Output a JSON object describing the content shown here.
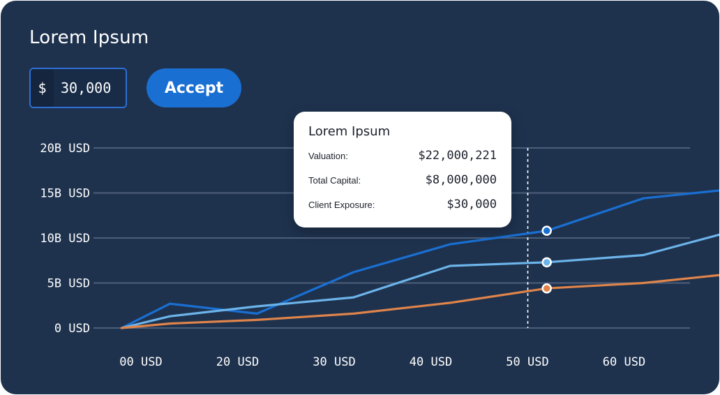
{
  "header": {
    "title": "Lorem Ipsum"
  },
  "amount_input": {
    "currency_symbol": "$",
    "value": "30,000"
  },
  "accept_button": {
    "label": "Accept"
  },
  "tooltip": {
    "title": "Lorem Ipsum",
    "rows": [
      {
        "label": "Valuation:",
        "value": "$22,000,221"
      },
      {
        "label": "Total Capital:",
        "value": "$8,000,000"
      },
      {
        "label": "Client Exposure:",
        "value": "$30,000"
      }
    ]
  },
  "colors": {
    "card_background": "#1e324e",
    "accent": "#1a6fd2",
    "gridline": "#4d5f7a"
  },
  "chart_data": {
    "type": "line",
    "y_tick_labels": [
      "0 USD",
      "5B USD",
      "10B USD",
      "15B USD",
      "20B USD"
    ],
    "y_tick_values": [
      0,
      5,
      10,
      15,
      20
    ],
    "x_tick_labels": [
      "00 USD",
      "20 USD",
      "30 USD",
      "40 USD",
      "50 USD",
      "60 USD"
    ],
    "ylim": [
      0,
      20
    ],
    "grid": true,
    "highlight_category_index": 4,
    "series": [
      {
        "color": "#1a6fd2",
        "x": [
          -0.2,
          0.3,
          1.2,
          2.2,
          3.2,
          4.2,
          5.2,
          6.1
        ],
        "values": [
          0,
          2.7,
          1.6,
          6.2,
          9.3,
          10.8,
          14.4,
          15.4
        ]
      },
      {
        "color": "#6cb4ea",
        "x": [
          -0.2,
          0.3,
          1.2,
          2.2,
          3.2,
          4.2,
          5.2,
          6.1
        ],
        "values": [
          0,
          1.3,
          2.4,
          3.4,
          6.9,
          7.3,
          8.1,
          10.7
        ]
      },
      {
        "color": "#e0844a",
        "x": [
          -0.2,
          0.3,
          1.2,
          2.2,
          3.2,
          4.2,
          5.2,
          6.1
        ],
        "values": [
          0,
          0.5,
          0.9,
          1.6,
          2.8,
          4.4,
          5.0,
          6.0
        ]
      }
    ]
  }
}
